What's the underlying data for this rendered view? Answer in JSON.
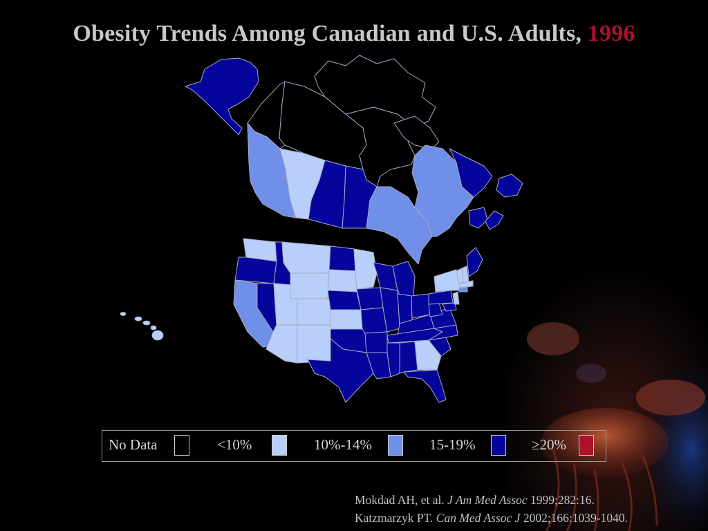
{
  "title": {
    "main": "Obesity Trends Among Canadian and U.S. Adults,",
    "year": "1996"
  },
  "legend": {
    "items": [
      {
        "label": "No Data",
        "color": "#000000"
      },
      {
        "label": "<10%",
        "color": "#b7cffa"
      },
      {
        "label": "10%-14%",
        "color": "#6f8fe8"
      },
      {
        "label": "15-19%",
        "color": "#05059c"
      },
      {
        "label": "≥20%",
        "color": "#b0102a"
      }
    ]
  },
  "citations": [
    {
      "authors": "Mokdad AH, et al.",
      "journal": "J Am Med Assoc",
      "details": "1999;282:16."
    },
    {
      "authors": "Katzmarzyk PT.",
      "journal": "Can Med Assoc J",
      "details": "2002;166:1039-1040."
    }
  ],
  "colors": {
    "background": "#000000",
    "title_text": "#c8c8c8",
    "year_text": "#b0102a",
    "border": "#a9a9c4"
  }
}
